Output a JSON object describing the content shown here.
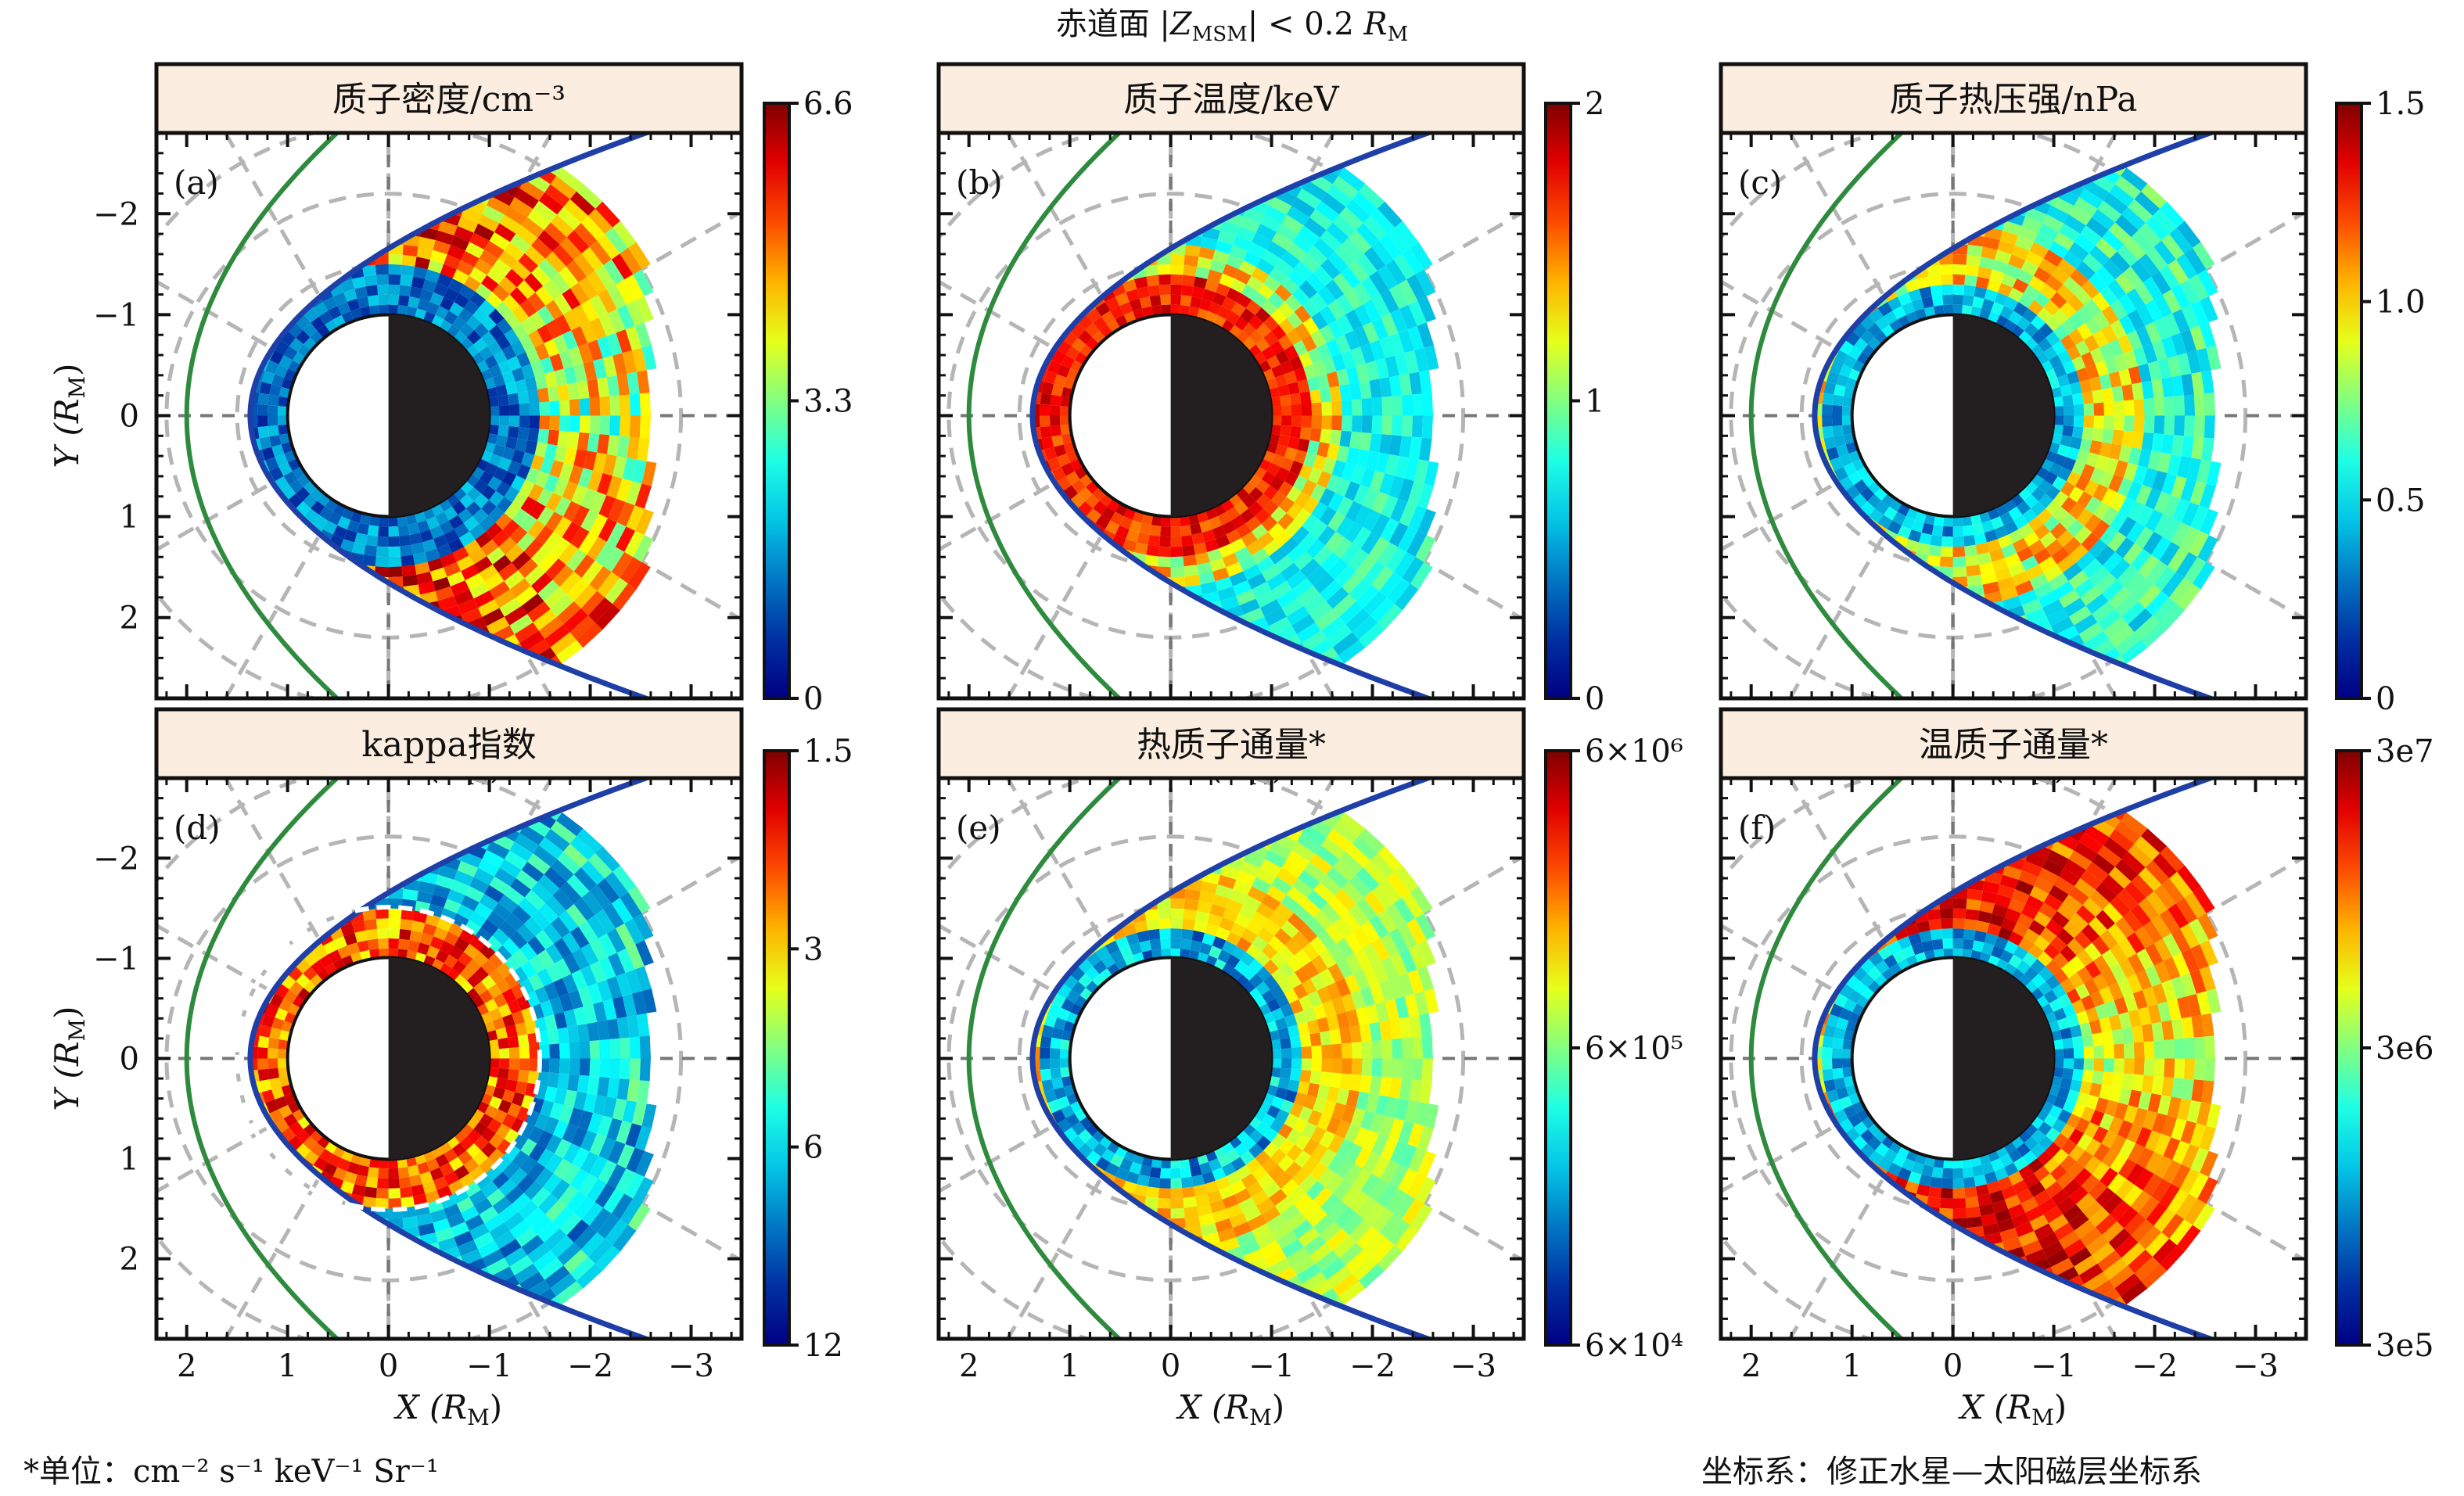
{
  "figure": {
    "header": {
      "prefix": "赤道面 |",
      "z": "Z",
      "z_sub": "MSM",
      "mid": "| < 0.2 ",
      "r": "R",
      "r_sub": "M"
    },
    "footnote": "*单位：cm⁻² s⁻¹  keV⁻¹ Sr⁻¹",
    "coord_note": "坐标系：修正水星—太阳磁层坐标系",
    "axis_x_label": {
      "main": "X (R",
      "sub": "M",
      "tail": ")"
    },
    "axis_y_label": {
      "main": "Y (R",
      "sub": "M",
      "tail": ")"
    },
    "x_tick_labels": [
      "2",
      "1",
      "0",
      "−1",
      "−2",
      "−3"
    ],
    "y_tick_labels": [
      "−2",
      "−1",
      "0",
      "1",
      "2"
    ]
  },
  "chart_data": [
    {
      "type": "heatmap",
      "panel": "(a)",
      "title": "质子密度/cm⁻³",
      "colorbar_ticks": [
        "6.6",
        "3.3",
        "0"
      ],
      "cbar_range": [
        0,
        6.6
      ],
      "scale": "linear",
      "xlim": [
        2.3,
        -3.5
      ],
      "ylim": [
        -2.8,
        2.8
      ]
    },
    {
      "type": "heatmap",
      "panel": "(b)",
      "title": "质子温度/keV",
      "colorbar_ticks": [
        "2",
        "1",
        "0"
      ],
      "cbar_range": [
        0,
        2
      ],
      "scale": "linear",
      "xlim": [
        2.3,
        -3.5
      ],
      "ylim": [
        -2.8,
        2.8
      ]
    },
    {
      "type": "heatmap",
      "panel": "(c)",
      "title": "质子热压强/nPa",
      "colorbar_ticks": [
        "1.5",
        "1.0",
        "0.5",
        "0"
      ],
      "cbar_range": [
        0,
        1.5
      ],
      "scale": "linear",
      "xlim": [
        2.3,
        -3.5
      ],
      "ylim": [
        -2.8,
        2.8
      ]
    },
    {
      "type": "heatmap",
      "panel": "(d)",
      "title": "kappa指数",
      "colorbar_ticks": [
        "1.5",
        "3",
        "6",
        "12"
      ],
      "cbar_range": [
        1.5,
        12
      ],
      "scale": "log-reversed",
      "xlim": [
        2.3,
        -3.5
      ],
      "ylim": [
        -2.8,
        2.8
      ]
    },
    {
      "type": "heatmap",
      "panel": "(e)",
      "title": "热质子通量*",
      "colorbar_ticks": [
        "6×10⁶",
        "6×10⁵",
        "6×10⁴"
      ],
      "cbar_range": [
        60000,
        6000000
      ],
      "scale": "log",
      "xlim": [
        2.3,
        -3.5
      ],
      "ylim": [
        -2.8,
        2.8
      ]
    },
    {
      "type": "heatmap",
      "panel": "(f)",
      "title": "温质子通量*",
      "colorbar_ticks": [
        "3e7",
        "3e6",
        "3e5"
      ],
      "cbar_range": [
        300000,
        30000000
      ],
      "scale": "log",
      "xlim": [
        2.3,
        -3.5
      ],
      "ylim": [
        -2.8,
        2.8
      ]
    }
  ],
  "colors": {
    "magnetopause": "#1f3fa8",
    "bow_shock": "#2e8b3e",
    "title_box_fill": "#fbeee0",
    "planet_night": "#231f20",
    "guide_lines": "#b5b5b5"
  }
}
